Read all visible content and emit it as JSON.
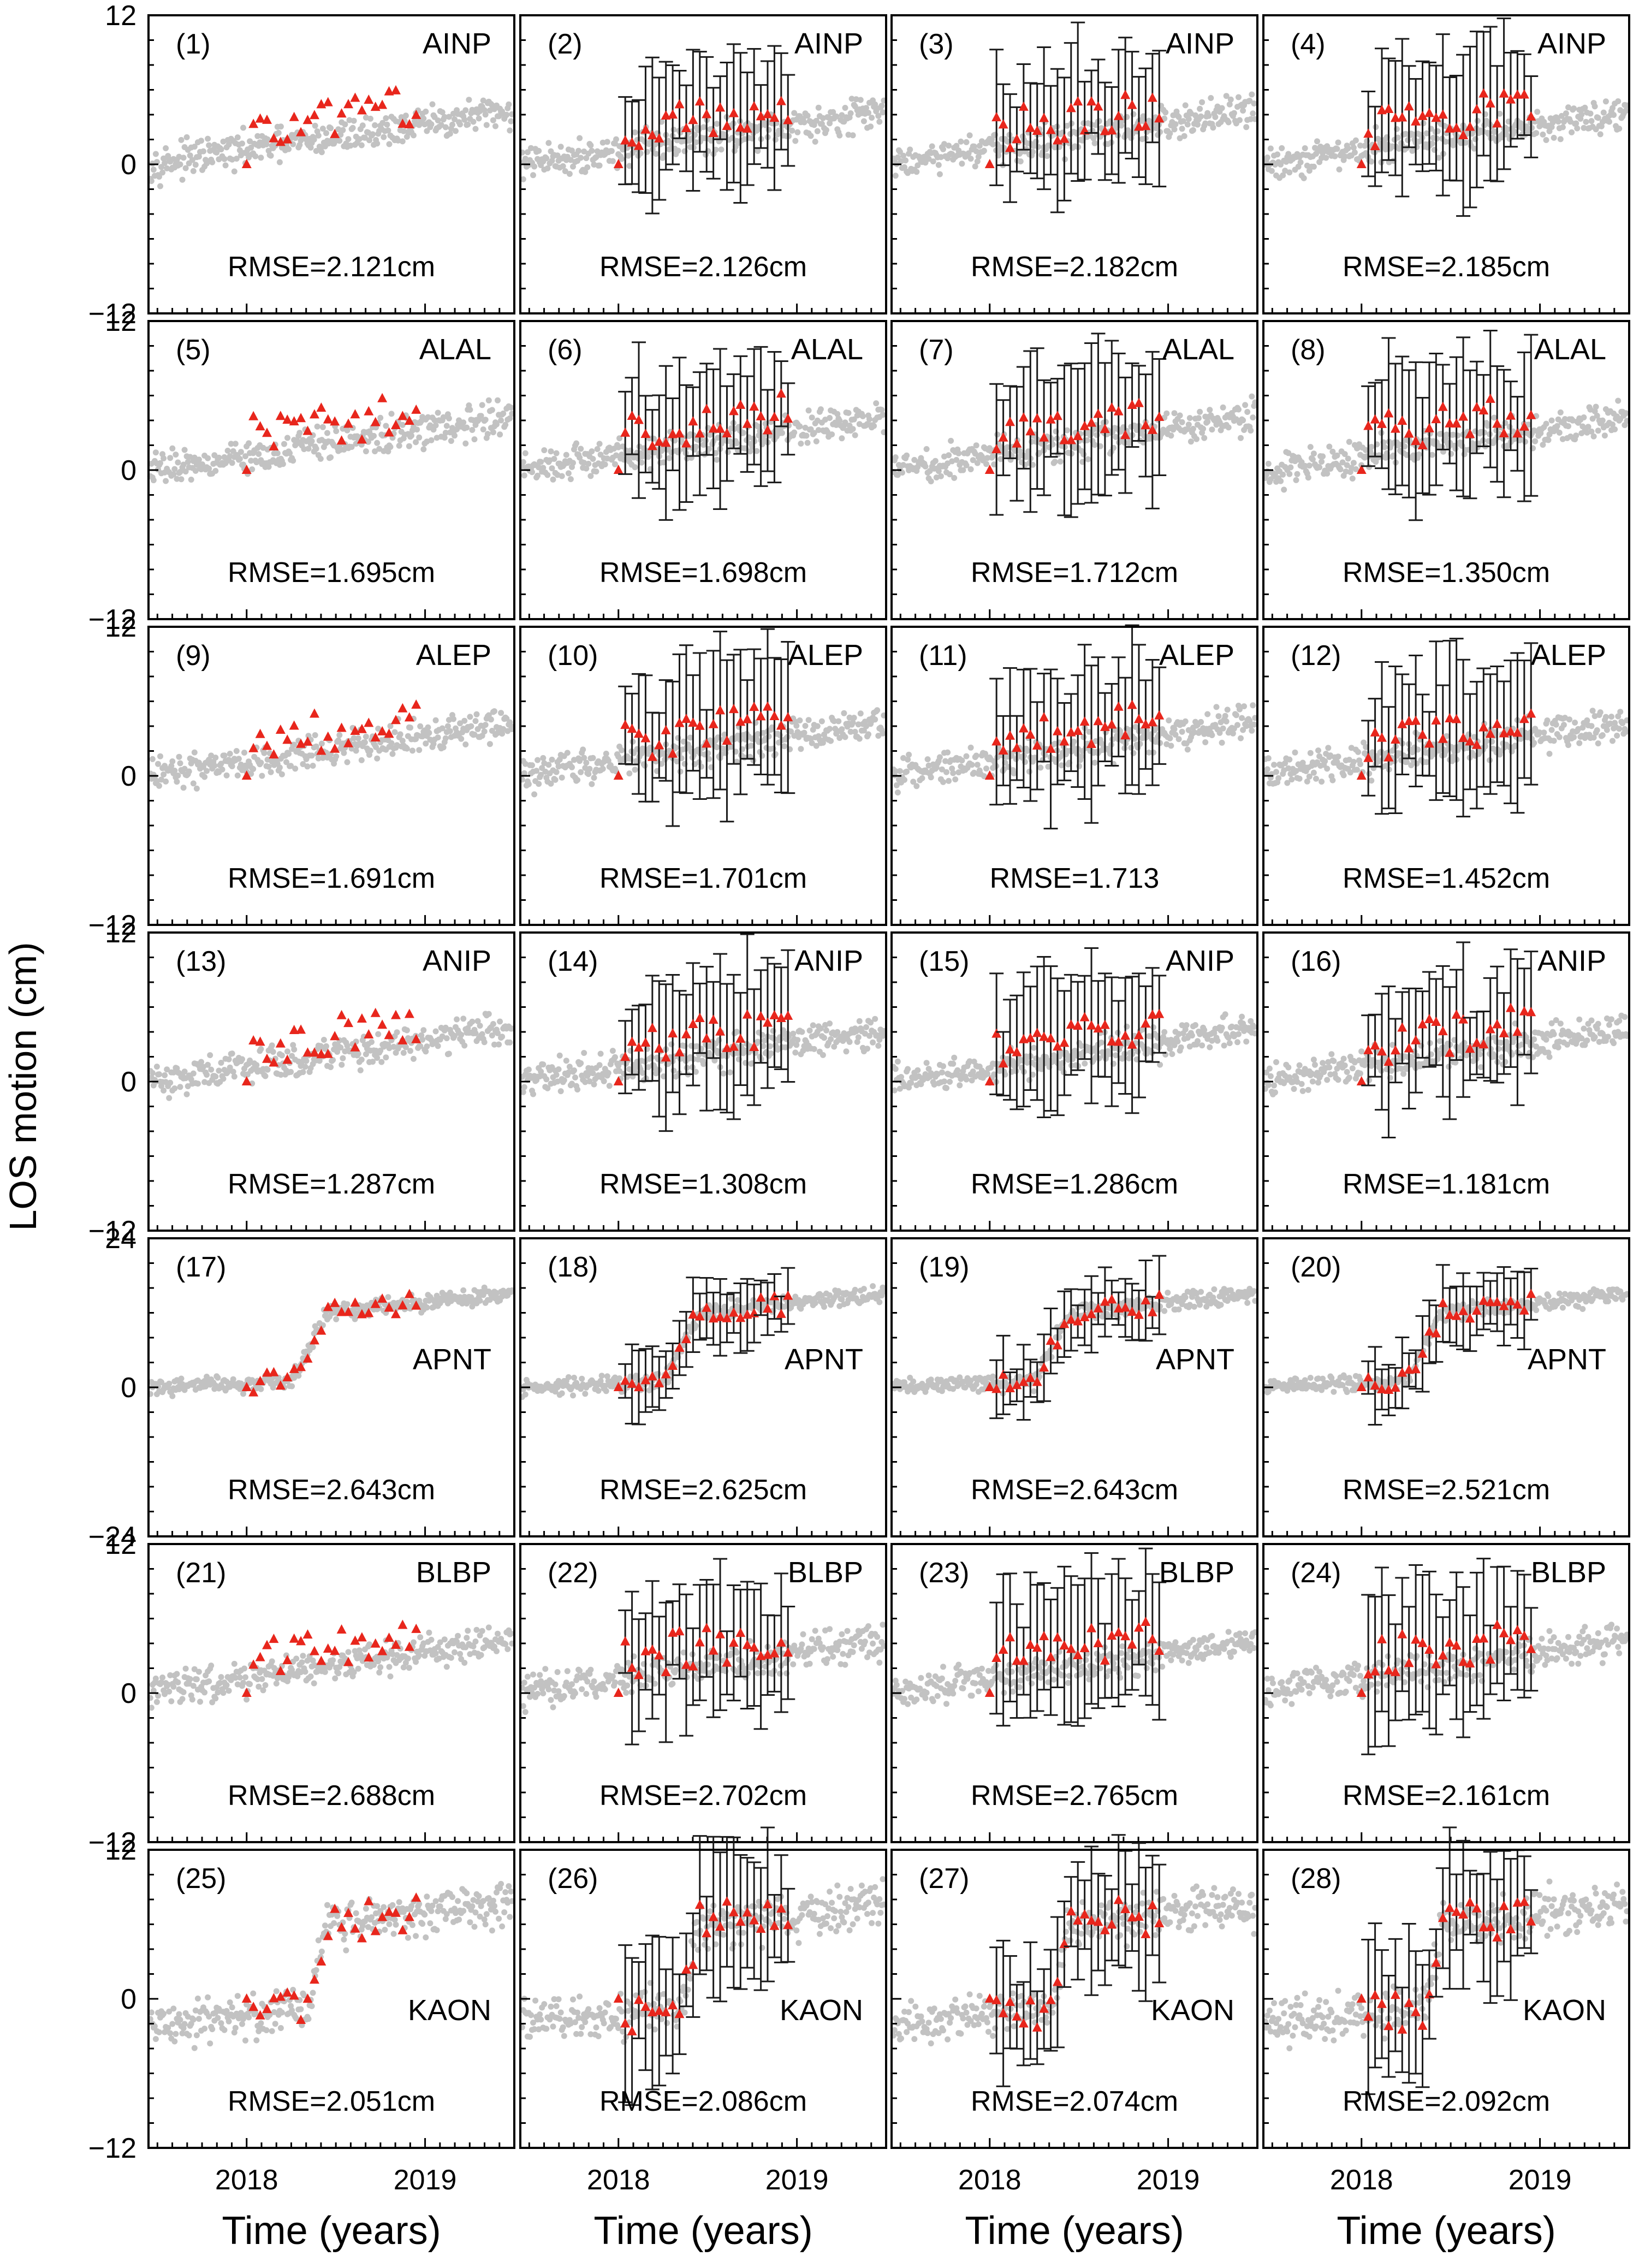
{
  "figure": {
    "ylabel": "LOS motion (cm)",
    "xlabel": "Time (years)",
    "colors": {
      "background_points": "#c2c2c2",
      "estimate_markers": "#e8261c",
      "error_bars": "#1a1a1a",
      "frame": "#000000"
    }
  },
  "chart_data": [
    {
      "type": "scatter",
      "panel": "(1)",
      "station": "AINP",
      "rmse": "RMSE=2.121cm",
      "xlim": [
        2017.45,
        2019.5
      ],
      "ylim": [
        -12,
        12
      ],
      "yticks": [
        "12",
        "0",
        "−12"
      ],
      "has_error_bars": false,
      "label_pos": "top",
      "step": 0
    },
    {
      "type": "scatter",
      "panel": "(2)",
      "station": "AINP",
      "rmse": "RMSE=2.126cm",
      "xlim": [
        2017.45,
        2019.5
      ],
      "ylim": [
        -12,
        12
      ],
      "has_error_bars": true,
      "label_pos": "top",
      "step": 0
    },
    {
      "type": "scatter",
      "panel": "(3)",
      "station": "AINP",
      "rmse": "RMSE=2.182cm",
      "xlim": [
        2017.45,
        2019.5
      ],
      "ylim": [
        -12,
        12
      ],
      "has_error_bars": true,
      "label_pos": "top",
      "step": 0
    },
    {
      "type": "scatter",
      "panel": "(4)",
      "station": "AINP",
      "rmse": "RMSE=2.185cm",
      "xlim": [
        2017.45,
        2019.5
      ],
      "ylim": [
        -12,
        12
      ],
      "has_error_bars": true,
      "label_pos": "top",
      "step": 0
    },
    {
      "type": "scatter",
      "panel": "(5)",
      "station": "ALAL",
      "rmse": "RMSE=1.695cm",
      "xlim": [
        2017.45,
        2019.5
      ],
      "ylim": [
        -12,
        12
      ],
      "yticks": [
        "12",
        "0",
        "−12"
      ],
      "has_error_bars": false,
      "label_pos": "top",
      "step": 0
    },
    {
      "type": "scatter",
      "panel": "(6)",
      "station": "ALAL",
      "rmse": "RMSE=1.698cm",
      "xlim": [
        2017.45,
        2019.5
      ],
      "ylim": [
        -12,
        12
      ],
      "has_error_bars": true,
      "label_pos": "top",
      "step": 0
    },
    {
      "type": "scatter",
      "panel": "(7)",
      "station": "ALAL",
      "rmse": "RMSE=1.712cm",
      "xlim": [
        2017.45,
        2019.5
      ],
      "ylim": [
        -12,
        12
      ],
      "has_error_bars": true,
      "label_pos": "top",
      "step": 0
    },
    {
      "type": "scatter",
      "panel": "(8)",
      "station": "ALAL",
      "rmse": "RMSE=1.350cm",
      "xlim": [
        2017.45,
        2019.5
      ],
      "ylim": [
        -12,
        12
      ],
      "has_error_bars": true,
      "label_pos": "top",
      "step": 0
    },
    {
      "type": "scatter",
      "panel": "(9)",
      "station": "ALEP",
      "rmse": "RMSE=1.691cm",
      "xlim": [
        2017.45,
        2019.5
      ],
      "ylim": [
        -12,
        12
      ],
      "yticks": [
        "12",
        "0",
        "−12"
      ],
      "has_error_bars": false,
      "label_pos": "top",
      "step": 0
    },
    {
      "type": "scatter",
      "panel": "(10)",
      "station": "ALEP",
      "rmse": "RMSE=1.701cm",
      "xlim": [
        2017.45,
        2019.5
      ],
      "ylim": [
        -12,
        12
      ],
      "has_error_bars": true,
      "label_pos": "top",
      "step": 0
    },
    {
      "type": "scatter",
      "panel": "(11)",
      "station": "ALEP",
      "rmse": "RMSE=1.713",
      "xlim": [
        2017.45,
        2019.5
      ],
      "ylim": [
        -12,
        12
      ],
      "has_error_bars": true,
      "label_pos": "top",
      "step": 0
    },
    {
      "type": "scatter",
      "panel": "(12)",
      "station": "ALEP",
      "rmse": "RMSE=1.452cm",
      "xlim": [
        2017.45,
        2019.5
      ],
      "ylim": [
        -12,
        12
      ],
      "has_error_bars": true,
      "label_pos": "top",
      "step": 0
    },
    {
      "type": "scatter",
      "panel": "(13)",
      "station": "ANIP",
      "rmse": "RMSE=1.287cm",
      "xlim": [
        2017.45,
        2019.5
      ],
      "ylim": [
        -12,
        12
      ],
      "yticks": [
        "12",
        "0",
        "−12"
      ],
      "has_error_bars": false,
      "label_pos": "top",
      "step": 0
    },
    {
      "type": "scatter",
      "panel": "(14)",
      "station": "ANIP",
      "rmse": "RMSE=1.308cm",
      "xlim": [
        2017.45,
        2019.5
      ],
      "ylim": [
        -12,
        12
      ],
      "has_error_bars": true,
      "label_pos": "top",
      "step": 0
    },
    {
      "type": "scatter",
      "panel": "(15)",
      "station": "ANIP",
      "rmse": "RMSE=1.286cm",
      "xlim": [
        2017.45,
        2019.5
      ],
      "ylim": [
        -12,
        12
      ],
      "has_error_bars": true,
      "label_pos": "top",
      "step": 0
    },
    {
      "type": "scatter",
      "panel": "(16)",
      "station": "ANIP",
      "rmse": "RMSE=1.181cm",
      "xlim": [
        2017.45,
        2019.5
      ],
      "ylim": [
        -12,
        12
      ],
      "has_error_bars": true,
      "label_pos": "top",
      "step": 0
    },
    {
      "type": "scatter",
      "panel": "(17)",
      "station": "APNT",
      "rmse": "RMSE=2.643cm",
      "xlim": [
        2017.45,
        2019.5
      ],
      "ylim": [
        -24,
        24
      ],
      "yticks": [
        "24",
        "0",
        "−24"
      ],
      "has_error_bars": false,
      "label_pos": "middle",
      "step": 1
    },
    {
      "type": "scatter",
      "panel": "(18)",
      "station": "APNT",
      "rmse": "RMSE=2.625cm",
      "xlim": [
        2017.45,
        2019.5
      ],
      "ylim": [
        -24,
        24
      ],
      "has_error_bars": true,
      "label_pos": "middle",
      "step": 1
    },
    {
      "type": "scatter",
      "panel": "(19)",
      "station": "APNT",
      "rmse": "RMSE=2.643cm",
      "xlim": [
        2017.45,
        2019.5
      ],
      "ylim": [
        -24,
        24
      ],
      "has_error_bars": true,
      "label_pos": "middle",
      "step": 1
    },
    {
      "type": "scatter",
      "panel": "(20)",
      "station": "APNT",
      "rmse": "RMSE=2.521cm",
      "xlim": [
        2017.45,
        2019.5
      ],
      "ylim": [
        -24,
        24
      ],
      "has_error_bars": true,
      "label_pos": "middle",
      "step": 1
    },
    {
      "type": "scatter",
      "panel": "(21)",
      "station": "BLBP",
      "rmse": "RMSE=2.688cm",
      "xlim": [
        2017.45,
        2019.5
      ],
      "ylim": [
        -12,
        12
      ],
      "yticks": [
        "12",
        "0",
        "−12"
      ],
      "has_error_bars": false,
      "label_pos": "top",
      "step": 0
    },
    {
      "type": "scatter",
      "panel": "(22)",
      "station": "BLBP",
      "rmse": "RMSE=2.702cm",
      "xlim": [
        2017.45,
        2019.5
      ],
      "ylim": [
        -12,
        12
      ],
      "has_error_bars": true,
      "label_pos": "top",
      "step": 0
    },
    {
      "type": "scatter",
      "panel": "(23)",
      "station": "BLBP",
      "rmse": "RMSE=2.765cm",
      "xlim": [
        2017.45,
        2019.5
      ],
      "ylim": [
        -12,
        12
      ],
      "has_error_bars": true,
      "label_pos": "top",
      "step": 0
    },
    {
      "type": "scatter",
      "panel": "(24)",
      "station": "BLBP",
      "rmse": "RMSE=2.161cm",
      "xlim": [
        2017.45,
        2019.5
      ],
      "ylim": [
        -12,
        12
      ],
      "has_error_bars": true,
      "label_pos": "top",
      "step": 0
    },
    {
      "type": "scatter",
      "panel": "(25)",
      "station": "KAON",
      "rmse": "RMSE=2.051cm",
      "xlim": [
        2017.45,
        2019.5
      ],
      "ylim": [
        -12,
        12
      ],
      "yticks": [
        "12",
        "0",
        "−12"
      ],
      "xticks": [
        "2018",
        "2019"
      ],
      "has_error_bars": false,
      "label_pos": "middle",
      "step": 2
    },
    {
      "type": "scatter",
      "panel": "(26)",
      "station": "KAON",
      "rmse": "RMSE=2.086cm",
      "xlim": [
        2017.45,
        2019.5
      ],
      "ylim": [
        -12,
        12
      ],
      "xticks": [
        "2018",
        "2019"
      ],
      "has_error_bars": true,
      "label_pos": "middle",
      "step": 2
    },
    {
      "type": "scatter",
      "panel": "(27)",
      "station": "KAON",
      "rmse": "RMSE=2.074cm",
      "xlim": [
        2017.45,
        2019.5
      ],
      "ylim": [
        -12,
        12
      ],
      "xticks": [
        "2018",
        "2019"
      ],
      "has_error_bars": true,
      "label_pos": "middle",
      "step": 2
    },
    {
      "type": "scatter",
      "panel": "(28)",
      "station": "KAON",
      "rmse": "RMSE=2.092cm",
      "xlim": [
        2017.45,
        2019.5
      ],
      "ylim": [
        -12,
        12
      ],
      "xticks": [
        "2018",
        "2019"
      ],
      "has_error_bars": true,
      "label_pos": "middle",
      "step": 2
    }
  ]
}
